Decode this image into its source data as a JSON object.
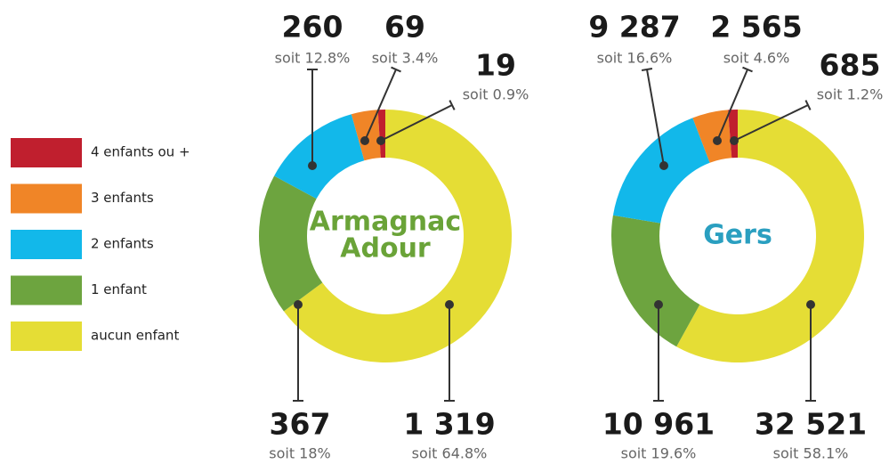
{
  "legend": {
    "categories": [
      "aucun enfant",
      "1 enfant",
      "2 enfants",
      "3 enfants",
      "4 enfants ou +"
    ],
    "colors": [
      "#e5dd35",
      "#6da43f",
      "#12b8ea",
      "#f08527",
      "#c01f2e"
    ]
  },
  "chart_data": [
    {
      "type": "donut",
      "title": [
        "Armagnac",
        "Adour"
      ],
      "title_color": "#6aa338",
      "categories": [
        "aucun enfant",
        "1 enfant",
        "2 enfants",
        "3 enfants",
        "4 enfants ou +"
      ],
      "values": [
        1319,
        367,
        260,
        69,
        19
      ],
      "value_labels": [
        "1 319",
        "367",
        "260",
        "69",
        "19"
      ],
      "percent_labels": [
        "soit 64.8%",
        "soit 18%",
        "soit 12.8%",
        "soit 3.4%",
        "soit 0.9%"
      ]
    },
    {
      "type": "donut",
      "title": [
        "Gers"
      ],
      "title_color": "#2a9fc0",
      "categories": [
        "aucun enfant",
        "1 enfant",
        "2 enfants",
        "3 enfants",
        "4 enfants ou +"
      ],
      "values": [
        32521,
        10961,
        9287,
        2565,
        685
      ],
      "value_labels": [
        "32 521",
        "10 961",
        "9 287",
        "2 565",
        "685"
      ],
      "percent_labels": [
        "soit 58.1%",
        "soit 19.6%",
        "soit 16.6%",
        "soit 4.6%",
        "soit 1.2%"
      ]
    }
  ]
}
